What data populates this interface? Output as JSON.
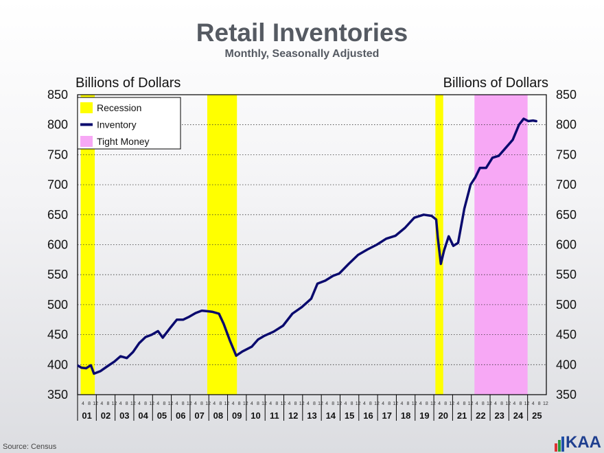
{
  "chart_data": {
    "type": "line",
    "title": "Retail Inventories",
    "subtitle": "Monthly, Seasonally Adjusted",
    "ylabel_left": "Billions of Dollars",
    "ylabel_right": "Billions of Dollars",
    "ylim": [
      350,
      850
    ],
    "yticks": [
      350,
      400,
      450,
      500,
      550,
      600,
      650,
      700,
      750,
      800,
      850
    ],
    "xlim": [
      "2001-01",
      "2025-12"
    ],
    "year_labels": [
      "01",
      "02",
      "03",
      "04",
      "05",
      "06",
      "07",
      "08",
      "09",
      "10",
      "11",
      "12",
      "13",
      "14",
      "15",
      "16",
      "17",
      "18",
      "19",
      "20",
      "21",
      "22",
      "23",
      "24",
      "25"
    ],
    "month_labels": [
      "4",
      "8",
      "12"
    ],
    "grid": "horizontal dotted",
    "legend": {
      "position": "top-left",
      "entries": [
        {
          "label": "Recession",
          "color": "#ffff00",
          "kind": "box"
        },
        {
          "label": "Inventory",
          "color": "#0a0a6e",
          "kind": "line"
        },
        {
          "label": "Tight Money",
          "color": "#f7a8f5",
          "kind": "box"
        }
      ]
    },
    "shaded_periods": [
      {
        "name": "Recession",
        "start": "2001-03",
        "end": "2001-11",
        "color": "#ffff00"
      },
      {
        "name": "Recession",
        "start": "2007-12",
        "end": "2009-06",
        "color": "#ffff00"
      },
      {
        "name": "Recession",
        "start": "2020-02",
        "end": "2020-06",
        "color": "#ffff00"
      },
      {
        "name": "Tight Money",
        "start": "2022-03",
        "end": "2024-12",
        "color": "#f7a8f5"
      }
    ],
    "series": [
      {
        "name": "Inventory",
        "color": "#0a0a6e",
        "points": [
          [
            "2001-01",
            398
          ],
          [
            "2001-03",
            395
          ],
          [
            "2001-06",
            394
          ],
          [
            "2001-09",
            399
          ],
          [
            "2001-11",
            385
          ],
          [
            "2002-03",
            389
          ],
          [
            "2002-08",
            398
          ],
          [
            "2002-12",
            405
          ],
          [
            "2003-04",
            414
          ],
          [
            "2003-08",
            411
          ],
          [
            "2003-12",
            421
          ],
          [
            "2004-04",
            436
          ],
          [
            "2004-08",
            446
          ],
          [
            "2004-12",
            450
          ],
          [
            "2005-04",
            456
          ],
          [
            "2005-07",
            445
          ],
          [
            "2005-12",
            462
          ],
          [
            "2006-04",
            475
          ],
          [
            "2006-08",
            475
          ],
          [
            "2006-12",
            480
          ],
          [
            "2007-04",
            486
          ],
          [
            "2007-08",
            490
          ],
          [
            "2007-12",
            489
          ],
          [
            "2008-03",
            488
          ],
          [
            "2008-07",
            485
          ],
          [
            "2008-10",
            468
          ],
          [
            "2009-02",
            440
          ],
          [
            "2009-06",
            415
          ],
          [
            "2009-10",
            422
          ],
          [
            "2010-04",
            430
          ],
          [
            "2010-08",
            442
          ],
          [
            "2010-12",
            448
          ],
          [
            "2011-06",
            455
          ],
          [
            "2011-12",
            465
          ],
          [
            "2012-06",
            485
          ],
          [
            "2012-12",
            496
          ],
          [
            "2013-06",
            510
          ],
          [
            "2013-10",
            535
          ],
          [
            "2014-03",
            540
          ],
          [
            "2014-08",
            548
          ],
          [
            "2014-12",
            552
          ],
          [
            "2015-06",
            568
          ],
          [
            "2015-12",
            583
          ],
          [
            "2016-06",
            592
          ],
          [
            "2016-12",
            600
          ],
          [
            "2017-06",
            610
          ],
          [
            "2017-12",
            615
          ],
          [
            "2018-06",
            628
          ],
          [
            "2018-12",
            645
          ],
          [
            "2019-06",
            650
          ],
          [
            "2019-11",
            648
          ],
          [
            "2020-02",
            642
          ],
          [
            "2020-03",
            612
          ],
          [
            "2020-05",
            568
          ],
          [
            "2020-07",
            590
          ],
          [
            "2020-10",
            614
          ],
          [
            "2021-01",
            598
          ],
          [
            "2021-04",
            603
          ],
          [
            "2021-08",
            660
          ],
          [
            "2021-12",
            700
          ],
          [
            "2022-03",
            712
          ],
          [
            "2022-06",
            728
          ],
          [
            "2022-10",
            728
          ],
          [
            "2023-02",
            745
          ],
          [
            "2023-06",
            748
          ],
          [
            "2023-10",
            760
          ],
          [
            "2024-03",
            775
          ],
          [
            "2024-07",
            800
          ],
          [
            "2024-10",
            810
          ],
          [
            "2025-01",
            806
          ],
          [
            "2025-04",
            807
          ],
          [
            "2025-06",
            806
          ]
        ]
      }
    ]
  },
  "footer": {
    "source": "Source: Census",
    "logo": "KAA"
  },
  "colors": {
    "recession": "#ffff00",
    "tight_money": "#f7a8f5",
    "line": "#0a0a6e"
  }
}
